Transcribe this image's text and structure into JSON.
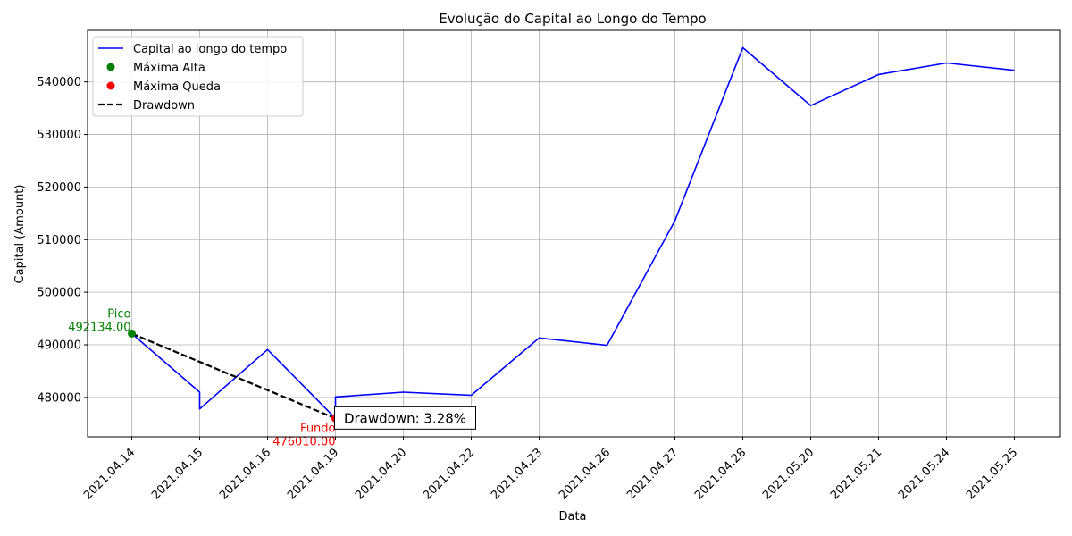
{
  "chart_data": {
    "type": "line",
    "title": "Evolução do Capital ao Longo do Tempo",
    "xlabel": "Data",
    "ylabel": "Capital (Amount)",
    "categories": [
      "2021.04.14",
      "2021.04.15",
      "2021.04.16",
      "2021.04.19",
      "2021.04.20",
      "2021.04.22",
      "2021.04.23",
      "2021.04.26",
      "2021.04.27",
      "2021.04.28",
      "2021.05.20",
      "2021.05.21",
      "2021.05.24",
      "2021.05.25"
    ],
    "series": [
      {
        "name": "Capital ao longo do tempo",
        "color": "#0000ff",
        "points": [
          {
            "x": "2021.04.14",
            "y": 492134.0
          },
          {
            "x": "2021.04.15",
            "y": 481000
          },
          {
            "x": "2021.04.15",
            "y": 477800
          },
          {
            "x": "2021.04.16",
            "y": 489100
          },
          {
            "x": "2021.04.19",
            "y": 476010.0
          },
          {
            "x": "2021.04.19",
            "y": 480100
          },
          {
            "x": "2021.04.20",
            "y": 481000
          },
          {
            "x": "2021.04.22",
            "y": 480400
          },
          {
            "x": "2021.04.23",
            "y": 491300
          },
          {
            "x": "2021.04.26",
            "y": 489900
          },
          {
            "x": "2021.04.27",
            "y": 513600
          },
          {
            "x": "2021.04.28",
            "y": 546500
          },
          {
            "x": "2021.05.20",
            "y": 535500
          },
          {
            "x": "2021.05.21",
            "y": 541400
          },
          {
            "x": "2021.05.24",
            "y": 543600
          },
          {
            "x": "2021.05.25",
            "y": 542200
          }
        ]
      }
    ],
    "peak": {
      "name": "Máxima Alta",
      "x": "2021.04.14",
      "y": 492134.0,
      "label_line1": "Pico",
      "label_line2": "492134.00",
      "color": "#008000"
    },
    "trough": {
      "name": "Máxima Queda",
      "x": "2021.04.19",
      "y": 476010.0,
      "label_line1": "Fundo",
      "label_line2": "476010.00",
      "color": "#ff0000"
    },
    "drawdown": {
      "name": "Drawdown",
      "label": "Drawdown: 3.28%",
      "color": "#000000"
    },
    "ylim": [
      472500,
      549800
    ],
    "yticks": [
      480000,
      490000,
      500000,
      510000,
      520000,
      530000,
      540000
    ],
    "ytick_labels": [
      "480000",
      "490000",
      "500000",
      "510000",
      "520000",
      "530000",
      "540000"
    ],
    "grid": true,
    "legend_position": "top-left"
  }
}
